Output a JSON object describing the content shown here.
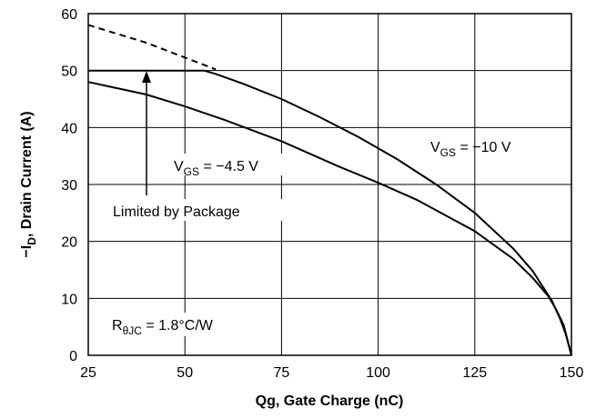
{
  "chart_data": {
    "type": "line",
    "title": "",
    "xlabel": "Qg, Gate Charge (nC)",
    "ylabel_main": "−I",
    "ylabel_sub": "D",
    "ylabel_rest": ", Drain Current (A)",
    "xlim": [
      25,
      150
    ],
    "ylim": [
      0,
      60
    ],
    "x_ticks": [
      25,
      50,
      75,
      100,
      125,
      150
    ],
    "y_ticks": [
      0,
      10,
      20,
      30,
      40,
      50,
      60
    ],
    "grid": true,
    "series": [
      {
        "style": "solid",
        "x": [
          25,
          40,
          55,
          58,
          65,
          75,
          85,
          95,
          105,
          115,
          125,
          135,
          140,
          145,
          147,
          148.5,
          150
        ],
        "y": [
          50,
          50,
          50,
          49.4,
          47.7,
          45.0,
          41.8,
          38.3,
          34.4,
          30.0,
          25.0,
          18.7,
          14.8,
          9.5,
          6.5,
          3.8,
          0
        ]
      },
      {
        "style": "solid",
        "x": [
          25,
          40,
          50,
          60,
          75,
          90,
          100,
          110,
          125,
          135,
          140,
          144,
          146,
          148,
          150
        ],
        "y": [
          48,
          45.8,
          43.7,
          41.4,
          37.6,
          33.1,
          30.3,
          27.3,
          21.8,
          16.9,
          13.6,
          10.4,
          8.1,
          5.3,
          0
        ]
      },
      {
        "style": "dashed",
        "x": [
          25,
          40,
          58
        ],
        "y": [
          58,
          54.9,
          50.2
        ]
      }
    ],
    "annotations": {
      "vgs10": {
        "main": "V",
        "sub": "GS",
        "rest": " = −10 V"
      },
      "vgs45": {
        "main": "V",
        "sub": "GS",
        "rest": " = −4.5 V"
      },
      "package": "Limited by Package",
      "rth": {
        "main": "R",
        "sub": "θJC",
        "rest": " = 1.8°C/W"
      }
    }
  }
}
